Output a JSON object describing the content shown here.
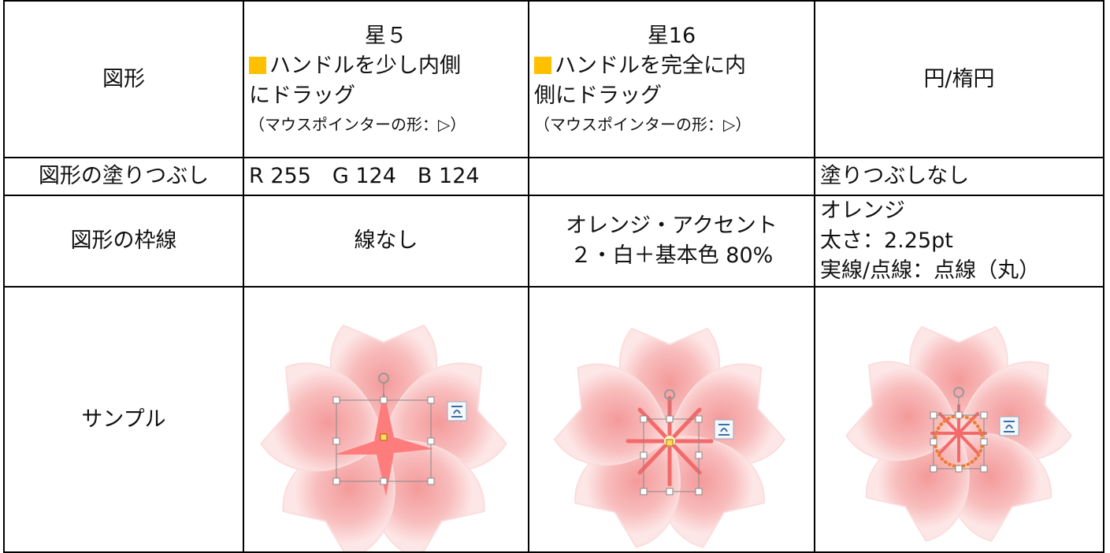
{
  "table": {
    "rows": [
      [
        [
          "図形"
        ],
        [
          "星５",
          "ハンドルを少し内側",
          "にドラッグ",
          "（マウスポインターの形：▷）"
        ],
        [
          "星16",
          "ハンドルを完全に内",
          "側にドラッグ",
          "（マウスポインターの形：▷）"
        ],
        [
          "円/楕円"
        ]
      ],
      [
        [
          "図形の塗りつぶし"
        ],
        [
          "R 255　G 124　B 124"
        ],
        [],
        [
          "塗りつぶしなし"
        ]
      ],
      [
        [
          "図形の枠線"
        ],
        [
          "線なし"
        ],
        [
          "オレンジ・アクセント",
          "２・白＋基本色 80%"
        ],
        [
          "オレンジ",
          "太さ：2.25pt",
          "実線/点線：点線（丸）"
        ]
      ],
      [
        [
          "サンプル"
        ],
        [],
        [],
        []
      ]
    ]
  }
}
